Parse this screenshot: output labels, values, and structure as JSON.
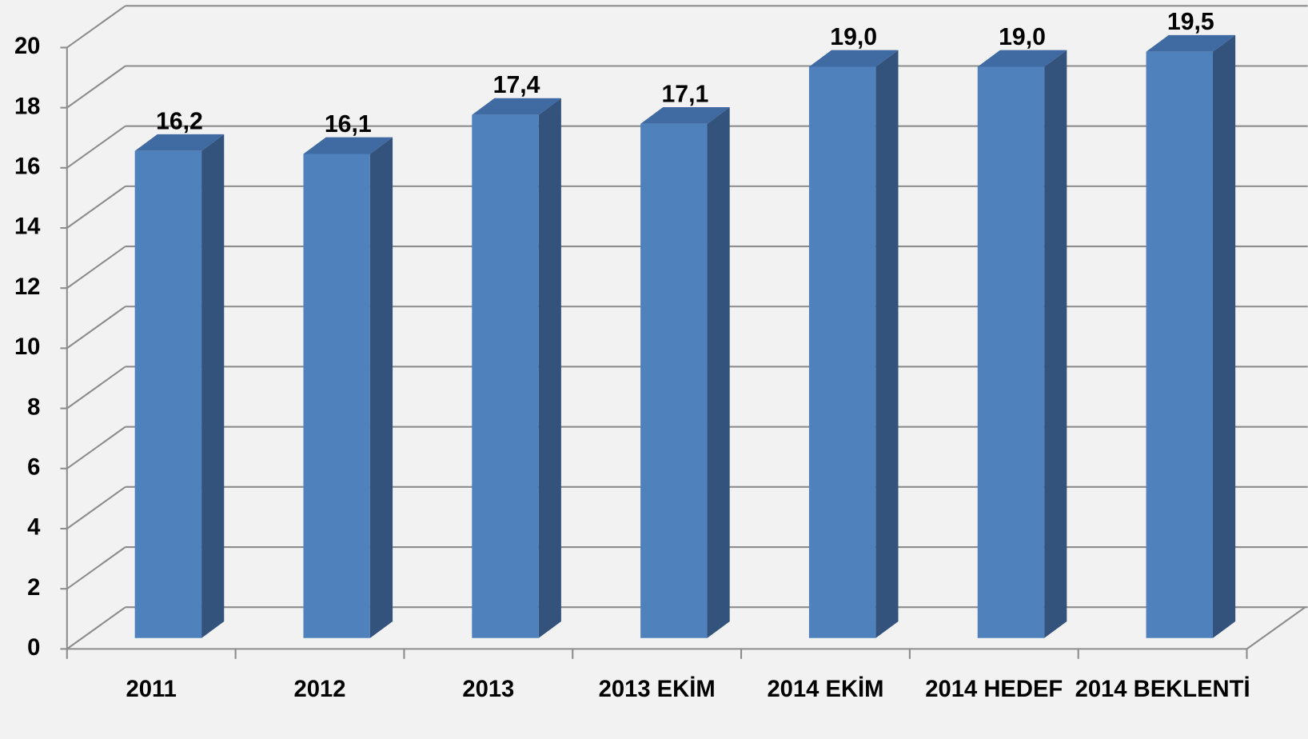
{
  "chart_data": {
    "type": "bar3d",
    "categories": [
      "2011",
      "2012",
      "2013",
      "2013 EKİM",
      "2014 EKİM",
      "2014 HEDEF",
      "2014 BEKLENTİ"
    ],
    "values": [
      16.2,
      16.1,
      17.4,
      17.1,
      19.0,
      19.0,
      19.5
    ],
    "value_labels": [
      "16,2",
      "16,1",
      "17,4",
      "17,1",
      "19,0",
      "19,0",
      "19,5"
    ],
    "color": "#4f81bd",
    "ylim": [
      0,
      20
    ],
    "yticks": [
      0,
      2,
      4,
      6,
      8,
      10,
      12,
      14,
      16,
      18,
      20
    ],
    "grid": true
  }
}
